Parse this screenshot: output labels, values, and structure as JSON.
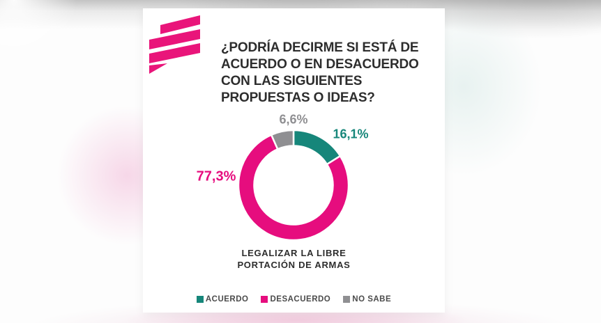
{
  "brand": {
    "logo_icon": "three-slanted-stripes-flag",
    "logo_color": "#E9157A"
  },
  "header": {
    "title": "¿PODRÍA DECIRME SI ESTÁ DE ACUERDO O EN DESACUERDO CON LAS SIGUIENTES PROPUESTAS O IDEAS?",
    "title_lines": [
      "¿PODRÍA DECIRME SI ESTÁ DE",
      "ACUERDO O EN DESACUERDO",
      "CON LAS SIGUIENTES",
      "PROPUESTAS O IDEAS?"
    ]
  },
  "chart_data": {
    "type": "pie",
    "donut": true,
    "start_at": "top",
    "direction": "clockwise",
    "title": "¿PODRÍA DECIRME SI ESTÁ DE ACUERDO O EN DESACUERDO CON LAS SIGUIENTES PROPUESTAS O IDEAS?",
    "category_label": "LEGALIZAR LA LIBRE PORTACIÓN DE ARMAS",
    "category_label_lines": [
      "LEGALIZAR LA LIBRE",
      "PORTACIÓN DE ARMAS"
    ],
    "legend_position": "bottom",
    "slices": [
      {
        "label": "ACUERDO",
        "value": 16.1,
        "display": "16,1%",
        "color": "#16867A"
      },
      {
        "label": "DESACUERDO",
        "value": 77.3,
        "display": "77,3%",
        "color": "#E60D7E"
      },
      {
        "label": "NO SABE",
        "value": 6.6,
        "display": "6,6%",
        "color": "#8F8F92"
      }
    ]
  }
}
